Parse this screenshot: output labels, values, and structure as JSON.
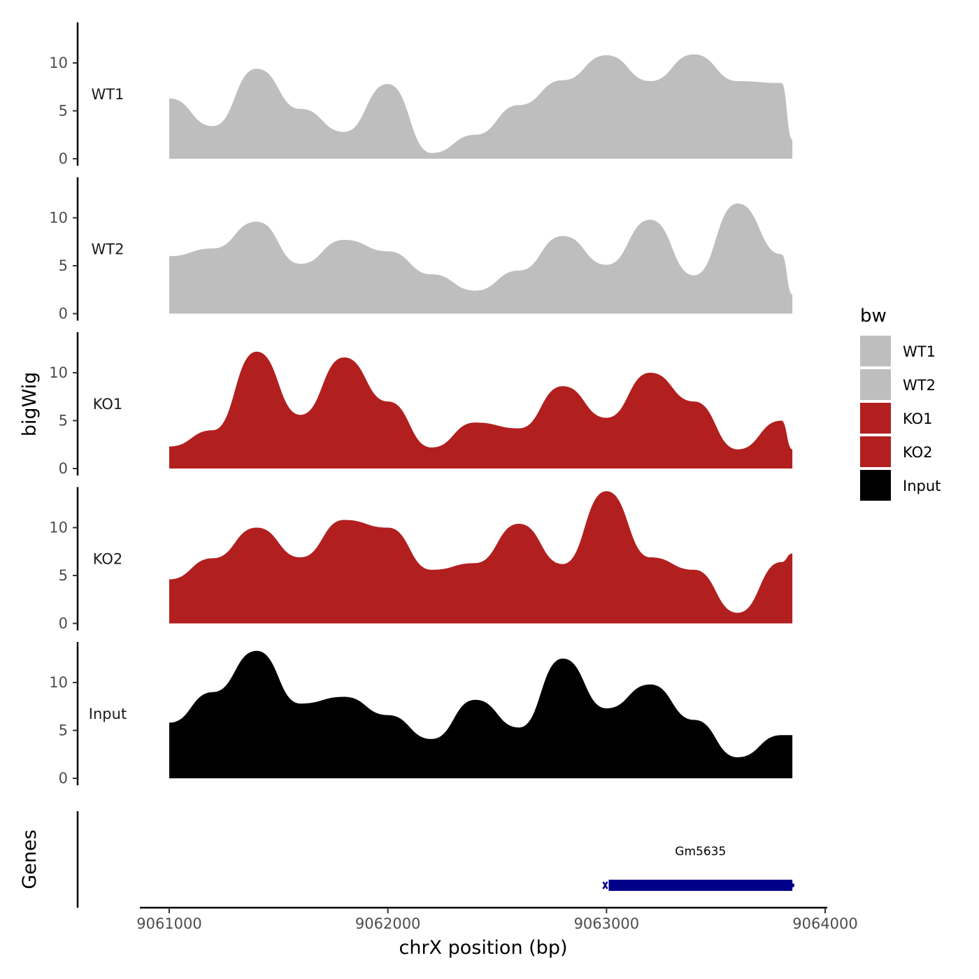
{
  "chart_data": {
    "type": "area",
    "title": "",
    "xlabel": "chrX position (bp)",
    "ylabel": "bigWig",
    "genes_label": "Genes",
    "xlim": [
      9060850,
      9064000
    ],
    "x_ticks": [
      9061000,
      9062000,
      9063000,
      9064000
    ],
    "x_tick_labels": [
      "9061000",
      "9062000",
      "9063000",
      "9064000"
    ],
    "ylim": [
      0,
      14
    ],
    "y_ticks": [
      0,
      5,
      10
    ],
    "y_tick_labels": [
      "0",
      "5",
      "10"
    ],
    "legend": {
      "title": "bw",
      "position": "right",
      "entries": [
        {
          "name": "WT1",
          "color": "#bebebe"
        },
        {
          "name": "WT2",
          "color": "#bebebe"
        },
        {
          "name": "KO1",
          "color": "#b21f1f"
        },
        {
          "name": "KO2",
          "color": "#b21f1f"
        },
        {
          "name": "Input",
          "color": "#000000"
        }
      ]
    },
    "x": [
      9061000,
      9061200,
      9061400,
      9061600,
      9061800,
      9062000,
      9062200,
      9062400,
      9062600,
      9062800,
      9063000,
      9063200,
      9063400,
      9063600,
      9063800,
      9063850
    ],
    "series": [
      {
        "name": "WT1",
        "color": "#bebebe",
        "values": [
          6.3,
          3.4,
          9.4,
          5.2,
          2.8,
          7.8,
          0.6,
          2.5,
          5.6,
          8.2,
          10.8,
          8.1,
          10.9,
          8.1,
          7.9,
          2.0
        ]
      },
      {
        "name": "WT2",
        "color": "#bebebe",
        "values": [
          6.0,
          6.8,
          9.6,
          5.2,
          7.7,
          6.5,
          4.1,
          2.4,
          4.5,
          8.1,
          5.1,
          9.8,
          4.0,
          11.5,
          6.2,
          2.0
        ]
      },
      {
        "name": "KO1",
        "color": "#b21f1f",
        "values": [
          2.3,
          4.0,
          12.2,
          5.6,
          11.6,
          7.0,
          2.2,
          4.8,
          4.2,
          8.6,
          5.3,
          10.0,
          7.0,
          2.0,
          5.0,
          2.0
        ]
      },
      {
        "name": "KO2",
        "color": "#b21f1f",
        "values": [
          4.6,
          6.8,
          10.0,
          6.9,
          10.8,
          10.0,
          5.6,
          6.3,
          10.4,
          6.2,
          13.8,
          6.9,
          5.6,
          1.1,
          6.4,
          7.3
        ]
      },
      {
        "name": "Input",
        "color": "#000000",
        "values": [
          5.8,
          9.0,
          13.3,
          7.8,
          8.5,
          6.6,
          4.1,
          8.2,
          5.3,
          12.5,
          7.3,
          9.8,
          6.1,
          2.2,
          4.5,
          4.5
        ]
      }
    ],
    "genes": [
      {
        "name": "Gm5635",
        "start": 9063010,
        "end": 9063850,
        "strand": "+",
        "color": "#00008b"
      }
    ]
  }
}
